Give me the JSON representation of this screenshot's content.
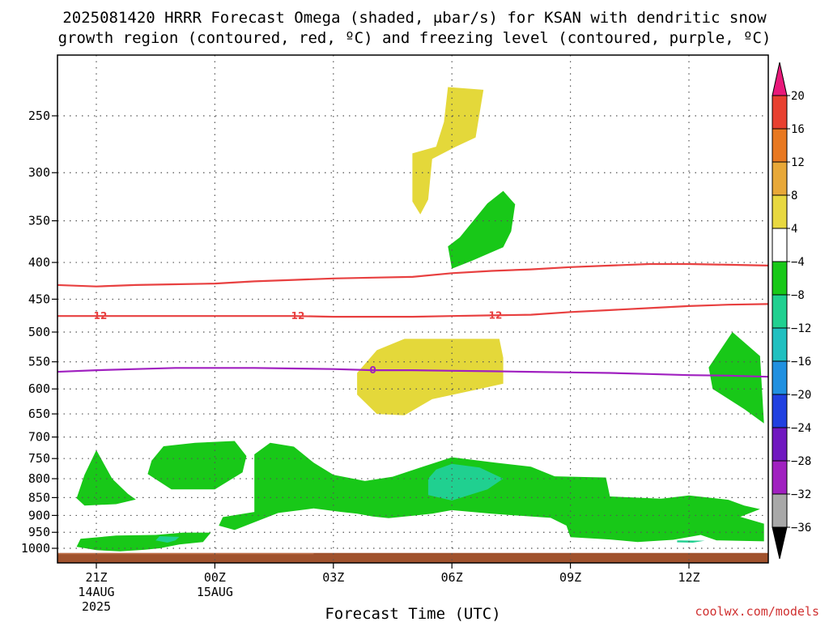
{
  "chart_data": {
    "type": "contour",
    "title_line1": "2025081420 HRRR Forecast Omega (shaded, μbar/s) for KSAN with dendritic snow",
    "title_line2": "growth region (contoured, red, ºC) and freezing level (contoured, purple, ºC)",
    "xlabel": "Forecast Time (UTC)",
    "ylabel": "",
    "credit": "coolwx.com/models",
    "x_ticks": [
      {
        "hour": -1,
        "label": "21Z",
        "sub1": "14AUG",
        "sub2": "2025"
      },
      {
        "hour": 2,
        "label": "00Z",
        "sub1": "15AUG",
        "sub2": ""
      },
      {
        "hour": 5,
        "label": "03Z",
        "sub1": "",
        "sub2": ""
      },
      {
        "hour": 8,
        "label": "06Z",
        "sub1": "",
        "sub2": ""
      },
      {
        "hour": 11,
        "label": "09Z",
        "sub1": "",
        "sub2": ""
      },
      {
        "hour": 14,
        "label": "12Z",
        "sub1": "",
        "sub2": ""
      }
    ],
    "y_ticks": [
      250,
      300,
      350,
      400,
      450,
      500,
      550,
      600,
      650,
      700,
      750,
      800,
      850,
      900,
      950,
      1000
    ],
    "y_axis": "pressure (hPa), log scale, inverted",
    "ylim": [
      1025,
      200
    ],
    "xlim_hours": [
      -2,
      16
    ],
    "grid": true,
    "colorbar": {
      "position": "right",
      "levels": [
        "20",
        "16",
        "12",
        "8",
        "4",
        "−4",
        "−8",
        "−12",
        "−16",
        "−20",
        "−24",
        "−28",
        "−32",
        "−36"
      ],
      "colors": [
        "#e8197a",
        "#e84030",
        "#e87820",
        "#e8a838",
        "#e8d840",
        "#ffffff",
        "#18c818",
        "#20d090",
        "#20c0c0",
        "#2090e0",
        "#2040e0",
        "#7018c0",
        "#a020c0",
        "#a8a8a8",
        "#000000"
      ]
    },
    "shaded_regions": [
      {
        "fill": "#e4d83a",
        "points": [
          [
            7.9,
            228
          ],
          [
            8.8,
            230
          ],
          [
            8.6,
            268
          ],
          [
            8.1,
            276
          ],
          [
            7.5,
            287
          ],
          [
            7.4,
            327
          ],
          [
            7.2,
            343
          ],
          [
            7.0,
            329
          ],
          [
            7.0,
            282
          ],
          [
            7.6,
            276
          ],
          [
            7.8,
            255
          ]
        ]
      },
      {
        "fill": "#18c818",
        "points": [
          [
            9.3,
            318
          ],
          [
            9.6,
            332
          ],
          [
            9.5,
            362
          ],
          [
            9.3,
            381
          ],
          [
            8.5,
            398
          ],
          [
            8.0,
            408
          ],
          [
            7.9,
            380
          ],
          [
            8.2,
            369
          ],
          [
            8.9,
            331
          ]
        ]
      },
      {
        "fill": "#e4d83a",
        "points": [
          [
            6.1,
            530
          ],
          [
            6.8,
            511
          ],
          [
            9.2,
            511
          ],
          [
            9.3,
            543
          ],
          [
            9.3,
            590
          ],
          [
            8.7,
            600
          ],
          [
            7.5,
            620
          ],
          [
            6.8,
            653
          ],
          [
            6.1,
            650
          ],
          [
            5.6,
            611
          ],
          [
            5.6,
            570
          ]
        ]
      },
      {
        "fill": "#18c818",
        "points": [
          [
            15.1,
            500
          ],
          [
            15.8,
            540
          ],
          [
            15.9,
            670
          ],
          [
            15.4,
            640
          ],
          [
            14.6,
            600
          ],
          [
            14.5,
            560
          ]
        ]
      },
      {
        "fill": "#18c818",
        "points": [
          [
            -1.0,
            730
          ],
          [
            -0.6,
            800
          ],
          [
            -0.2,
            840
          ],
          [
            0.0,
            855
          ],
          [
            -0.5,
            868
          ],
          [
            -1.3,
            872
          ],
          [
            -1.5,
            852
          ],
          [
            -1.3,
            790
          ]
        ]
      },
      {
        "fill": "#18c818",
        "points": [
          [
            0.7,
            721
          ],
          [
            1.5,
            713
          ],
          [
            2.5,
            709
          ],
          [
            2.8,
            744
          ],
          [
            2.7,
            784
          ],
          [
            2.0,
            828
          ],
          [
            0.9,
            828
          ],
          [
            0.3,
            788
          ],
          [
            0.4,
            755
          ]
        ]
      },
      {
        "fill": "#18c818",
        "points": [
          [
            3.0,
            740
          ],
          [
            3.4,
            713
          ],
          [
            4.0,
            722
          ],
          [
            4.5,
            760
          ],
          [
            5.0,
            790
          ],
          [
            5.8,
            806
          ],
          [
            6.5,
            795
          ],
          [
            7.2,
            772
          ],
          [
            8.0,
            747
          ],
          [
            9.1,
            760
          ],
          [
            10.0,
            770
          ],
          [
            10.6,
            794
          ],
          [
            11.9,
            797
          ],
          [
            12.0,
            847
          ],
          [
            13.3,
            853
          ],
          [
            14.0,
            844
          ],
          [
            15.0,
            856
          ],
          [
            15.4,
            872
          ],
          [
            15.8,
            882
          ],
          [
            15.3,
            904
          ],
          [
            15.9,
            924
          ],
          [
            15.9,
            978
          ],
          [
            14.7,
            975
          ],
          [
            14.3,
            958
          ],
          [
            13.6,
            973
          ],
          [
            12.7,
            980
          ],
          [
            12.0,
            972
          ],
          [
            11.0,
            965
          ],
          [
            10.9,
            930
          ],
          [
            10.5,
            907
          ],
          [
            9.0,
            895
          ],
          [
            8.0,
            885
          ],
          [
            7.5,
            895
          ],
          [
            6.4,
            908
          ],
          [
            6.0,
            903
          ],
          [
            5.6,
            895
          ],
          [
            5.2,
            890
          ],
          [
            4.5,
            880
          ],
          [
            3.6,
            893
          ],
          [
            2.5,
            943
          ],
          [
            2.1,
            930
          ],
          [
            2.2,
            905
          ],
          [
            3.0,
            890
          ]
        ]
      },
      {
        "fill": "#20d090",
        "points": [
          [
            8.0,
            763
          ],
          [
            8.7,
            772
          ],
          [
            9.3,
            800
          ],
          [
            8.9,
            828
          ],
          [
            8.0,
            858
          ],
          [
            7.4,
            843
          ],
          [
            7.4,
            800
          ],
          [
            7.6,
            777
          ]
        ]
      },
      {
        "fill": "#18c818",
        "points": [
          [
            -1.4,
            970
          ],
          [
            -0.5,
            960
          ],
          [
            0.5,
            958
          ],
          [
            1.2,
            951
          ],
          [
            1.9,
            951
          ],
          [
            1.7,
            980
          ],
          [
            1.1,
            988
          ],
          [
            0.6,
            1000
          ],
          [
            0.2,
            1005
          ],
          [
            -0.4,
            1010
          ],
          [
            -1.0,
            1006
          ],
          [
            -1.5,
            995
          ]
        ]
      },
      {
        "fill": "#20d090",
        "points": [
          [
            0.6,
            962
          ],
          [
            1.1,
            964
          ],
          [
            1.0,
            975
          ],
          [
            0.8,
            982
          ],
          [
            0.5,
            975
          ]
        ]
      },
      {
        "fill": "#20d090",
        "points": [
          [
            13.7,
            975
          ],
          [
            14.4,
            976
          ],
          [
            14.1,
            982
          ],
          [
            13.7,
            981
          ]
        ]
      }
    ],
    "ground": {
      "fill": "#a0522d",
      "from_pressure": 1015,
      "to_pressure": 1025,
      "faint_end_hour": 4.5
    },
    "contours": [
      {
        "label": "",
        "color": "#e84040",
        "points": [
          [
            -2,
            430
          ],
          [
            -1,
            432
          ],
          [
            0,
            430
          ],
          [
            1,
            429
          ],
          [
            2,
            428
          ],
          [
            3,
            425
          ],
          [
            4,
            423
          ],
          [
            5,
            421
          ],
          [
            6,
            420
          ],
          [
            7,
            419
          ],
          [
            8,
            414
          ],
          [
            9,
            411
          ],
          [
            10,
            409
          ],
          [
            11,
            406
          ],
          [
            12,
            404
          ],
          [
            13,
            402
          ],
          [
            14,
            402
          ],
          [
            15,
            403
          ],
          [
            16,
            404
          ]
        ]
      },
      {
        "label": "−12",
        "color": "#e84040",
        "label_hours": [
          -1,
          4,
          9
        ],
        "points": [
          [
            -2,
            475
          ],
          [
            -1,
            475
          ],
          [
            0,
            475
          ],
          [
            1,
            475
          ],
          [
            2,
            475
          ],
          [
            3,
            475
          ],
          [
            4,
            475
          ],
          [
            5,
            476
          ],
          [
            6,
            476
          ],
          [
            7,
            476
          ],
          [
            8,
            475
          ],
          [
            9,
            474
          ],
          [
            10,
            473
          ],
          [
            11,
            469
          ],
          [
            12,
            466
          ],
          [
            13,
            463
          ],
          [
            14,
            460
          ],
          [
            15,
            458
          ],
          [
            16,
            457
          ]
        ]
      },
      {
        "label": "0",
        "color": "#a020c0",
        "label_hours": [
          6
        ],
        "points": [
          [
            -2,
            568
          ],
          [
            -1,
            565
          ],
          [
            0,
            563
          ],
          [
            1,
            561
          ],
          [
            2,
            561
          ],
          [
            3,
            561
          ],
          [
            4,
            562
          ],
          [
            5,
            563
          ],
          [
            6,
            565
          ],
          [
            7,
            565
          ],
          [
            8,
            566
          ],
          [
            9,
            567
          ],
          [
            10,
            568
          ],
          [
            11,
            569
          ],
          [
            12,
            570
          ],
          [
            13,
            572
          ],
          [
            14,
            574
          ],
          [
            15,
            575
          ],
          [
            16,
            577
          ]
        ]
      }
    ]
  }
}
